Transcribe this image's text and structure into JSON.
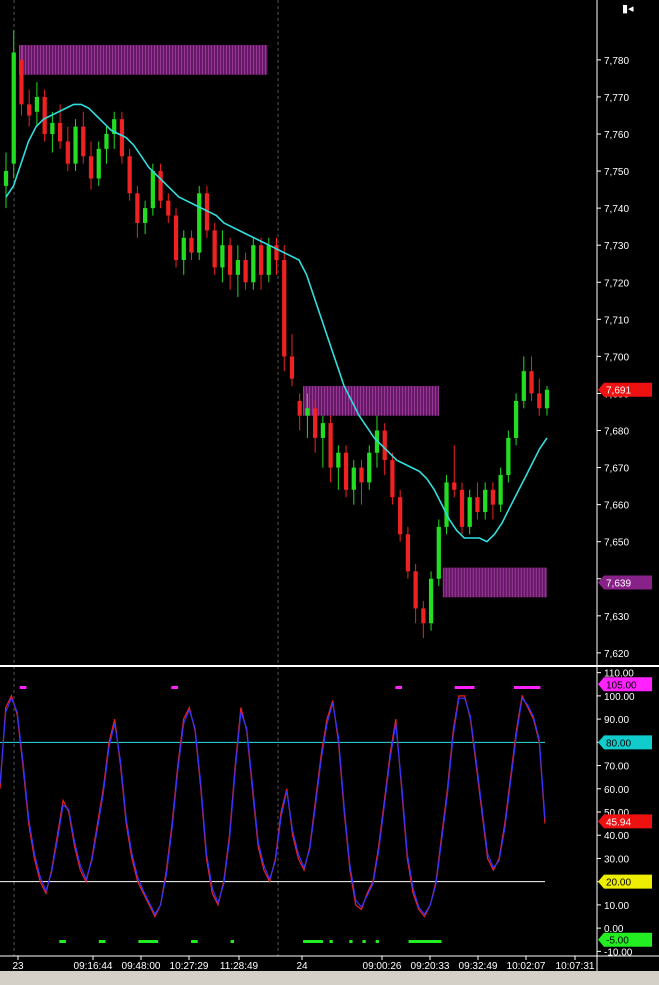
{
  "colors": {
    "background": "#000000",
    "up_candle": "#22dd22",
    "down_candle": "#ee2222",
    "moving_average": "#33dddd",
    "zone": "#6a1a6a",
    "oscillator_main": "#ee2222",
    "oscillator_signal": "#3333ff",
    "level_80": "#33dddd",
    "level_20": "#ffffff",
    "marker_top": "#ff22ff",
    "marker_bottom": "#22ee22",
    "current_price_tag": "#ee1111",
    "zone_price_tag": "#882288",
    "tag_105": "#ff22ff",
    "tag_80": "#11cccc",
    "tag_osc": "#ee1111",
    "tag_20": "#eeee00",
    "tag_neg5": "#22ee22"
  },
  "icons": {
    "corner": "chart-control-icon"
  },
  "chart_data": [
    {
      "type": "candlestick",
      "title": "",
      "price_axis": {
        "ticks": [
          "7,780",
          "7,770",
          "7,760",
          "7,750",
          "7,740",
          "7,730",
          "7,720",
          "7,710",
          "7,700",
          "7,690",
          "7,680",
          "7,670",
          "7,660",
          "7,650",
          "7,640",
          "7,630",
          "7,620"
        ],
        "range": [
          7617,
          7794
        ]
      },
      "current_price": {
        "value": 7691,
        "label": "7,691"
      },
      "zone_price": {
        "value": 7639,
        "label": "7,639"
      },
      "sessions": [
        "23",
        "24"
      ],
      "time_labels": [
        "23",
        "09:16:44",
        "09:48:00",
        "10:27:29",
        "11:28:49",
        "24",
        "09:00:26",
        "09:20:33",
        "09:32:49",
        "10:02:07",
        "10:07:31"
      ],
      "zones": [
        {
          "start_index": 3,
          "end_index": 58,
          "low": 7776,
          "high": 7784
        },
        {
          "start_index": 66,
          "end_index": 96,
          "low": 7684,
          "high": 7692
        },
        {
          "start_index": 97,
          "end_index": 120,
          "low": 7635,
          "high": 7643
        }
      ],
      "moving_average": [
        7743,
        7746,
        7752,
        7758,
        7762,
        7764,
        7765,
        7766,
        7767,
        7768,
        7768,
        7767,
        7765,
        7763,
        7761,
        7760,
        7759,
        7757,
        7754,
        7751,
        7749,
        7747,
        7745,
        7743,
        7742,
        7741,
        7740,
        7739,
        7738,
        7736,
        7735,
        7734,
        7733,
        7732,
        7731,
        7730,
        7729,
        7728,
        7727,
        7726,
        7722,
        7716,
        7710,
        7704,
        7698,
        7692,
        7688,
        7684,
        7681,
        7678,
        7676,
        7674,
        7672,
        7671,
        7670,
        7669,
        7667,
        7664,
        7660,
        7656,
        7653,
        7651,
        7651,
        7651,
        7650,
        7652,
        7655,
        7659,
        7663,
        7667,
        7671,
        7675,
        7678
      ],
      "ohlc": [
        [
          7746,
          7755,
          7740,
          7750
        ],
        [
          7752,
          7788,
          7748,
          7782
        ],
        [
          7780,
          7784,
          7765,
          7768
        ],
        [
          7768,
          7772,
          7762,
          7765
        ],
        [
          7766,
          7774,
          7762,
          7770
        ],
        [
          7770,
          7772,
          7758,
          7760
        ],
        [
          7760,
          7766,
          7755,
          7763
        ],
        [
          7763,
          7768,
          7756,
          7758
        ],
        [
          7758,
          7762,
          7750,
          7752
        ],
        [
          7752,
          7764,
          7750,
          7762
        ],
        [
          7762,
          7766,
          7752,
          7754
        ],
        [
          7754,
          7758,
          7745,
          7748
        ],
        [
          7748,
          7758,
          7746,
          7756
        ],
        [
          7756,
          7762,
          7752,
          7760
        ],
        [
          7760,
          7766,
          7756,
          7764
        ],
        [
          7764,
          7766,
          7752,
          7754
        ],
        [
          7754,
          7756,
          7742,
          7744
        ],
        [
          7744,
          7746,
          7732,
          7736
        ],
        [
          7736,
          7742,
          7733,
          7740
        ],
        [
          7740,
          7752,
          7738,
          7750
        ],
        [
          7750,
          7752,
          7740,
          7742
        ],
        [
          7742,
          7744,
          7736,
          7738
        ],
        [
          7738,
          7740,
          7724,
          7726
        ],
        [
          7726,
          7734,
          7722,
          7732
        ],
        [
          7732,
          7734,
          7726,
          7728
        ],
        [
          7728,
          7746,
          7726,
          7744
        ],
        [
          7744,
          7746,
          7732,
          7734
        ],
        [
          7734,
          7736,
          7722,
          7724
        ],
        [
          7724,
          7734,
          7720,
          7730
        ],
        [
          7730,
          7732,
          7718,
          7722
        ],
        [
          7722,
          7730,
          7716,
          7726
        ],
        [
          7726,
          7728,
          7718,
          7720
        ],
        [
          7720,
          7732,
          7718,
          7730
        ],
        [
          7730,
          7732,
          7718,
          7722
        ],
        [
          7722,
          7732,
          7720,
          7730
        ],
        [
          7730,
          7732,
          7722,
          7726
        ],
        [
          7726,
          7730,
          7696,
          7700
        ],
        [
          7700,
          7706,
          7692,
          7694
        ],
        [
          7688,
          7690,
          7680,
          7684
        ],
        [
          7684,
          7690,
          7678,
          7686
        ],
        [
          7686,
          7688,
          7674,
          7678
        ],
        [
          7678,
          7684,
          7670,
          7682
        ],
        [
          7682,
          7684,
          7666,
          7670
        ],
        [
          7670,
          7676,
          7664,
          7674
        ],
        [
          7674,
          7676,
          7662,
          7664
        ],
        [
          7664,
          7672,
          7660,
          7670
        ],
        [
          7670,
          7672,
          7660,
          7666
        ],
        [
          7666,
          7676,
          7664,
          7674
        ],
        [
          7674,
          7684,
          7670,
          7680
        ],
        [
          7680,
          7682,
          7668,
          7672
        ],
        [
          7672,
          7674,
          7660,
          7662
        ],
        [
          7662,
          7664,
          7650,
          7652
        ],
        [
          7652,
          7654,
          7640,
          7642
        ],
        [
          7642,
          7644,
          7628,
          7632
        ],
        [
          7632,
          7634,
          7624,
          7628
        ],
        [
          7628,
          7642,
          7626,
          7640
        ],
        [
          7640,
          7656,
          7638,
          7654
        ],
        [
          7654,
          7668,
          7652,
          7666
        ],
        [
          7666,
          7676,
          7662,
          7664
        ],
        [
          7664,
          7666,
          7652,
          7654
        ],
        [
          7654,
          7664,
          7652,
          7662
        ],
        [
          7662,
          7666,
          7656,
          7658
        ],
        [
          7658,
          7666,
          7656,
          7664
        ],
        [
          7664,
          7666,
          7656,
          7660
        ],
        [
          7660,
          7670,
          7658,
          7668
        ],
        [
          7668,
          7680,
          7666,
          7678
        ],
        [
          7678,
          7690,
          7676,
          7688
        ],
        [
          7688,
          7700,
          7686,
          7696
        ],
        [
          7696,
          7700,
          7688,
          7690
        ],
        [
          7690,
          7694,
          7684,
          7686
        ],
        [
          7686,
          7692,
          7684,
          7691
        ]
      ]
    },
    {
      "type": "line",
      "title": "",
      "y_axis": {
        "ticks": [
          "110.00",
          "100.00",
          "90.00",
          "80.00",
          "70.00",
          "60.00",
          "50.00",
          "40.00",
          "30.00",
          "20.00",
          "10.00",
          "0.00",
          "-10.00"
        ],
        "range": [
          -12,
          112
        ]
      },
      "levels": [
        {
          "value": 80,
          "label": "80.00"
        },
        {
          "value": 20,
          "label": "20.00"
        }
      ],
      "tags": [
        {
          "value": 105,
          "label": "105.00"
        },
        {
          "value": 45.94,
          "label": "45.94"
        },
        {
          "value": -5,
          "label": "-5.00"
        }
      ],
      "series": [
        {
          "values": [
            60,
            95,
            100,
            92,
            70,
            45,
            30,
            20,
            15,
            25,
            40,
            55,
            50,
            35,
            25,
            20,
            30,
            45,
            60,
            80,
            90,
            70,
            45,
            30,
            20,
            15,
            10,
            5,
            10,
            25,
            45,
            70,
            90,
            95,
            85,
            60,
            30,
            15,
            10,
            20,
            40,
            70,
            95,
            85,
            60,
            35,
            25,
            20,
            30,
            50,
            60,
            40,
            30,
            25,
            35,
            55,
            75,
            90,
            98,
            80,
            50,
            25,
            10,
            8,
            15,
            20,
            35,
            55,
            75,
            90,
            60,
            30,
            15,
            8,
            5,
            10,
            20,
            40,
            60,
            85,
            100,
            100,
            90,
            70,
            50,
            30,
            25,
            30,
            45,
            65,
            85,
            100,
            95,
            90,
            80,
            45
          ]
        },
        {
          "values": [
            62,
            93,
            99,
            93,
            72,
            47,
            32,
            22,
            16,
            24,
            38,
            53,
            51,
            37,
            27,
            21,
            29,
            43,
            58,
            78,
            88,
            72,
            47,
            32,
            22,
            16,
            11,
            6,
            10,
            23,
            43,
            68,
            88,
            94,
            86,
            62,
            32,
            17,
            11,
            19,
            38,
            68,
            93,
            86,
            62,
            37,
            27,
            21,
            29,
            48,
            59,
            42,
            32,
            26,
            34,
            53,
            73,
            88,
            97,
            82,
            52,
            27,
            12,
            9,
            14,
            19,
            33,
            53,
            73,
            88,
            62,
            32,
            17,
            9,
            6,
            10,
            19,
            38,
            58,
            83,
            99,
            99,
            91,
            72,
            52,
            32,
            26,
            29,
            43,
            63,
            83,
            99,
            96,
            91,
            81,
            47
          ]
        }
      ],
      "markers_top": [
        {
          "x1": 0.03,
          "x2": 0.04
        },
        {
          "x1": 0.26,
          "x2": 0.27
        },
        {
          "x1": 0.6,
          "x2": 0.61
        },
        {
          "x1": 0.69,
          "x2": 0.72
        },
        {
          "x1": 0.78,
          "x2": 0.82
        }
      ],
      "markers_bottom": [
        {
          "x1": 0.09,
          "x2": 0.1
        },
        {
          "x1": 0.15,
          "x2": 0.16
        },
        {
          "x1": 0.21,
          "x2": 0.24
        },
        {
          "x1": 0.29,
          "x2": 0.3
        },
        {
          "x1": 0.35,
          "x2": 0.355
        },
        {
          "x1": 0.46,
          "x2": 0.49
        },
        {
          "x1": 0.5,
          "x2": 0.505
        },
        {
          "x1": 0.53,
          "x2": 0.535
        },
        {
          "x1": 0.55,
          "x2": 0.555
        },
        {
          "x1": 0.57,
          "x2": 0.575
        },
        {
          "x1": 0.62,
          "x2": 0.67
        }
      ]
    }
  ]
}
